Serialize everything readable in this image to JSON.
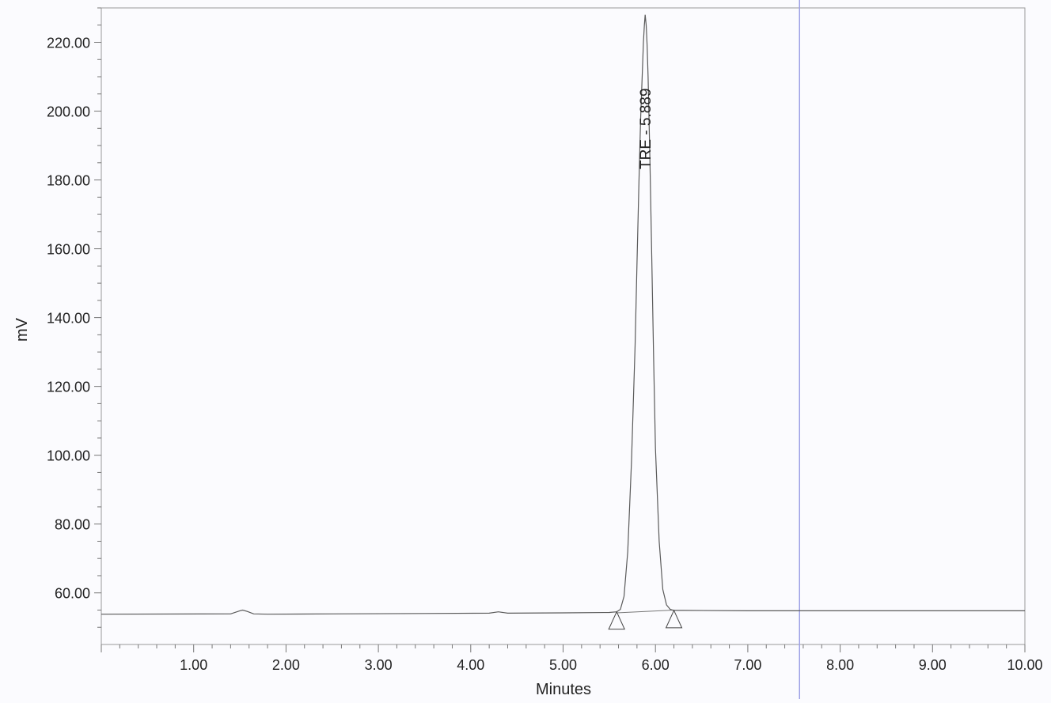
{
  "chart_data": {
    "type": "line",
    "title": "",
    "xlabel": "Minutes",
    "ylabel": "mV",
    "xlim": [
      0.0,
      10.0
    ],
    "ylim": [
      45.0,
      230.0
    ],
    "x_ticks": [
      1.0,
      2.0,
      3.0,
      4.0,
      5.0,
      6.0,
      7.0,
      8.0,
      9.0,
      10.0
    ],
    "x_tick_labels": [
      "1.00",
      "2.00",
      "3.00",
      "4.00",
      "5.00",
      "6.00",
      "7.00",
      "8.00",
      "9.00",
      "10.00"
    ],
    "y_ticks": [
      60.0,
      80.0,
      100.0,
      120.0,
      140.0,
      160.0,
      180.0,
      200.0,
      220.0
    ],
    "y_tick_labels": [
      "60.00",
      "80.00",
      "100.00",
      "120.00",
      "140.00",
      "160.00",
      "180.00",
      "200.00",
      "220.00"
    ],
    "grid": false,
    "series": [
      {
        "x": [
          0.0,
          1.4,
          1.5,
          1.53,
          1.58,
          1.65,
          1.8,
          2.5,
          3.5,
          4.2,
          4.3,
          4.4,
          5.0,
          5.5,
          5.58,
          5.62,
          5.66,
          5.7,
          5.74,
          5.78,
          5.8,
          5.82,
          5.84,
          5.86,
          5.87,
          5.88,
          5.889,
          5.9,
          5.91,
          5.92,
          5.94,
          5.96,
          5.98,
          6.0,
          6.04,
          6.08,
          6.12,
          6.16,
          6.2,
          6.3,
          7.0,
          8.0,
          9.0,
          10.0
        ],
        "y": [
          53.8,
          53.9,
          54.8,
          55.0,
          54.6,
          53.9,
          53.8,
          53.9,
          54.0,
          54.1,
          54.5,
          54.1,
          54.2,
          54.3,
          54.5,
          55.2,
          59.0,
          72.0,
          98.0,
          132.0,
          156.0,
          178.0,
          198.0,
          213.0,
          220.0,
          225.0,
          228.0,
          225.0,
          219.0,
          210.0,
          186.0,
          158.0,
          128.0,
          102.0,
          75.0,
          61.0,
          56.5,
          55.2,
          54.9,
          54.9,
          54.8,
          54.8,
          54.8,
          54.8
        ],
        "color": "#5a5a5a"
      }
    ],
    "baseline": {
      "x": [
        5.58,
        6.2
      ],
      "y": [
        54.2,
        55.0
      ]
    },
    "integration_markers": [
      5.58,
      6.2
    ],
    "cursor_x": 7.56,
    "peak_annotation": {
      "text": "TRE - 5.889",
      "x": 5.889
    }
  }
}
